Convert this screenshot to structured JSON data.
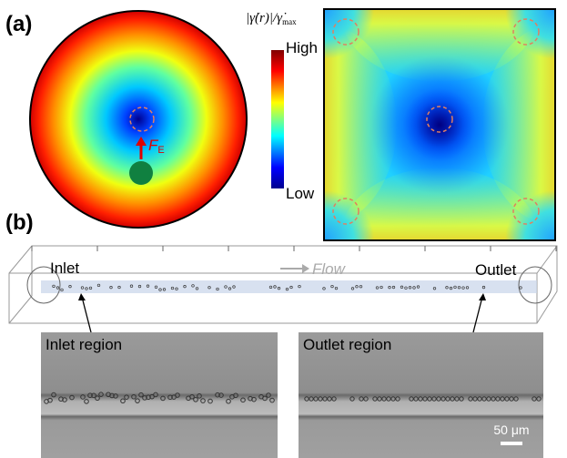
{
  "panel_a": {
    "label": "(a)",
    "force_symbol": "F",
    "force_subscript": "E",
    "colorbar": {
      "label_main": "|γ̇(r)|/γ̇",
      "label_sub": "max",
      "high": "High",
      "low": "Low"
    }
  },
  "panel_b": {
    "label": "(b)",
    "inlet": "Inlet",
    "outlet": "Outlet",
    "flow": "Flow",
    "inlet_region": "Inlet region",
    "outlet_region": "Outlet region",
    "scale_bar": "50 μm"
  }
}
